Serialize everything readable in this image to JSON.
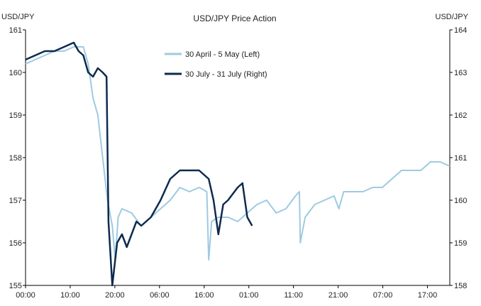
{
  "chart_data": {
    "type": "line",
    "title": "USD/JPY Price Action",
    "left_axis_label": "USD/JPY",
    "right_axis_label": "USD/JPY",
    "left_ylim": [
      155,
      161
    ],
    "right_ylim": [
      158,
      164
    ],
    "left_yticks": [
      155,
      156,
      157,
      158,
      159,
      160,
      161
    ],
    "right_yticks": [
      158,
      159,
      160,
      161,
      162,
      163,
      164
    ],
    "x_tick_labels": [
      "00:00",
      "10:00",
      "20:00",
      "06:00",
      "16:00",
      "01:00",
      "11:00",
      "21:00",
      "07:00",
      "17:00"
    ],
    "legend_position": "top-center",
    "grid": false,
    "series": [
      {
        "name": "30 April - 5 May (Left)",
        "axis": "left",
        "color": "#9ecae1",
        "points": [
          [
            0.0,
            160.2
          ],
          [
            1.0,
            160.3
          ],
          [
            2.0,
            160.4
          ],
          [
            3.0,
            160.5
          ],
          [
            4.0,
            160.5
          ],
          [
            5.0,
            160.6
          ],
          [
            6.0,
            160.6
          ],
          [
            6.5,
            160.2
          ],
          [
            7.0,
            159.4
          ],
          [
            7.5,
            159.0
          ],
          [
            8.0,
            158.0
          ],
          [
            8.5,
            157.0
          ],
          [
            9.0,
            156.4
          ],
          [
            9.3,
            155.6
          ],
          [
            9.6,
            156.6
          ],
          [
            10.0,
            156.8
          ],
          [
            11.0,
            156.7
          ],
          [
            12.0,
            156.4
          ],
          [
            13.0,
            156.6
          ],
          [
            14.0,
            156.8
          ],
          [
            15.0,
            157.0
          ],
          [
            16.0,
            157.3
          ],
          [
            17.0,
            157.2
          ],
          [
            18.0,
            157.3
          ],
          [
            18.8,
            157.2
          ],
          [
            19.0,
            155.6
          ],
          [
            19.3,
            156.5
          ],
          [
            20.0,
            156.6
          ],
          [
            21.0,
            156.6
          ],
          [
            22.0,
            156.5
          ],
          [
            23.0,
            156.7
          ],
          [
            24.0,
            156.9
          ],
          [
            25.0,
            157.0
          ],
          [
            26.0,
            156.7
          ],
          [
            27.0,
            156.8
          ],
          [
            28.0,
            157.1
          ],
          [
            28.4,
            157.2
          ],
          [
            28.5,
            156.0
          ],
          [
            29.0,
            156.6
          ],
          [
            30.0,
            156.9
          ],
          [
            31.0,
            157.0
          ],
          [
            32.0,
            157.1
          ],
          [
            32.5,
            156.8
          ],
          [
            33.0,
            157.2
          ],
          [
            34.0,
            157.2
          ],
          [
            35.0,
            157.2
          ],
          [
            36.0,
            157.3
          ],
          [
            37.0,
            157.3
          ],
          [
            38.0,
            157.5
          ],
          [
            39.0,
            157.7
          ],
          [
            40.0,
            157.7
          ],
          [
            41.0,
            157.7
          ],
          [
            42.0,
            157.9
          ],
          [
            43.0,
            157.9
          ],
          [
            44.0,
            157.8
          ]
        ]
      },
      {
        "name": "30 July - 31 July (Right)",
        "axis": "right",
        "color": "#0d2b4e",
        "points": [
          [
            0.0,
            163.3
          ],
          [
            1.0,
            163.4
          ],
          [
            2.0,
            163.5
          ],
          [
            3.0,
            163.5
          ],
          [
            4.0,
            163.6
          ],
          [
            5.0,
            163.7
          ],
          [
            5.5,
            163.5
          ],
          [
            6.0,
            163.4
          ],
          [
            6.5,
            163.0
          ],
          [
            7.0,
            162.9
          ],
          [
            7.5,
            163.1
          ],
          [
            8.0,
            163.0
          ],
          [
            8.4,
            162.9
          ],
          [
            8.6,
            159.5
          ],
          [
            9.0,
            158.0
          ],
          [
            9.5,
            159.0
          ],
          [
            10.0,
            159.2
          ],
          [
            10.5,
            158.9
          ],
          [
            11.0,
            159.2
          ],
          [
            11.5,
            159.5
          ],
          [
            12.0,
            159.4
          ],
          [
            13.0,
            159.6
          ],
          [
            14.0,
            160.0
          ],
          [
            15.0,
            160.5
          ],
          [
            16.0,
            160.7
          ],
          [
            17.0,
            160.7
          ],
          [
            18.0,
            160.7
          ],
          [
            19.0,
            160.5
          ],
          [
            19.5,
            160.0
          ],
          [
            20.0,
            159.2
          ],
          [
            20.5,
            159.9
          ],
          [
            21.0,
            160.0
          ],
          [
            22.0,
            160.3
          ],
          [
            22.5,
            160.4
          ],
          [
            23.0,
            159.6
          ],
          [
            23.5,
            159.4
          ]
        ]
      }
    ]
  }
}
